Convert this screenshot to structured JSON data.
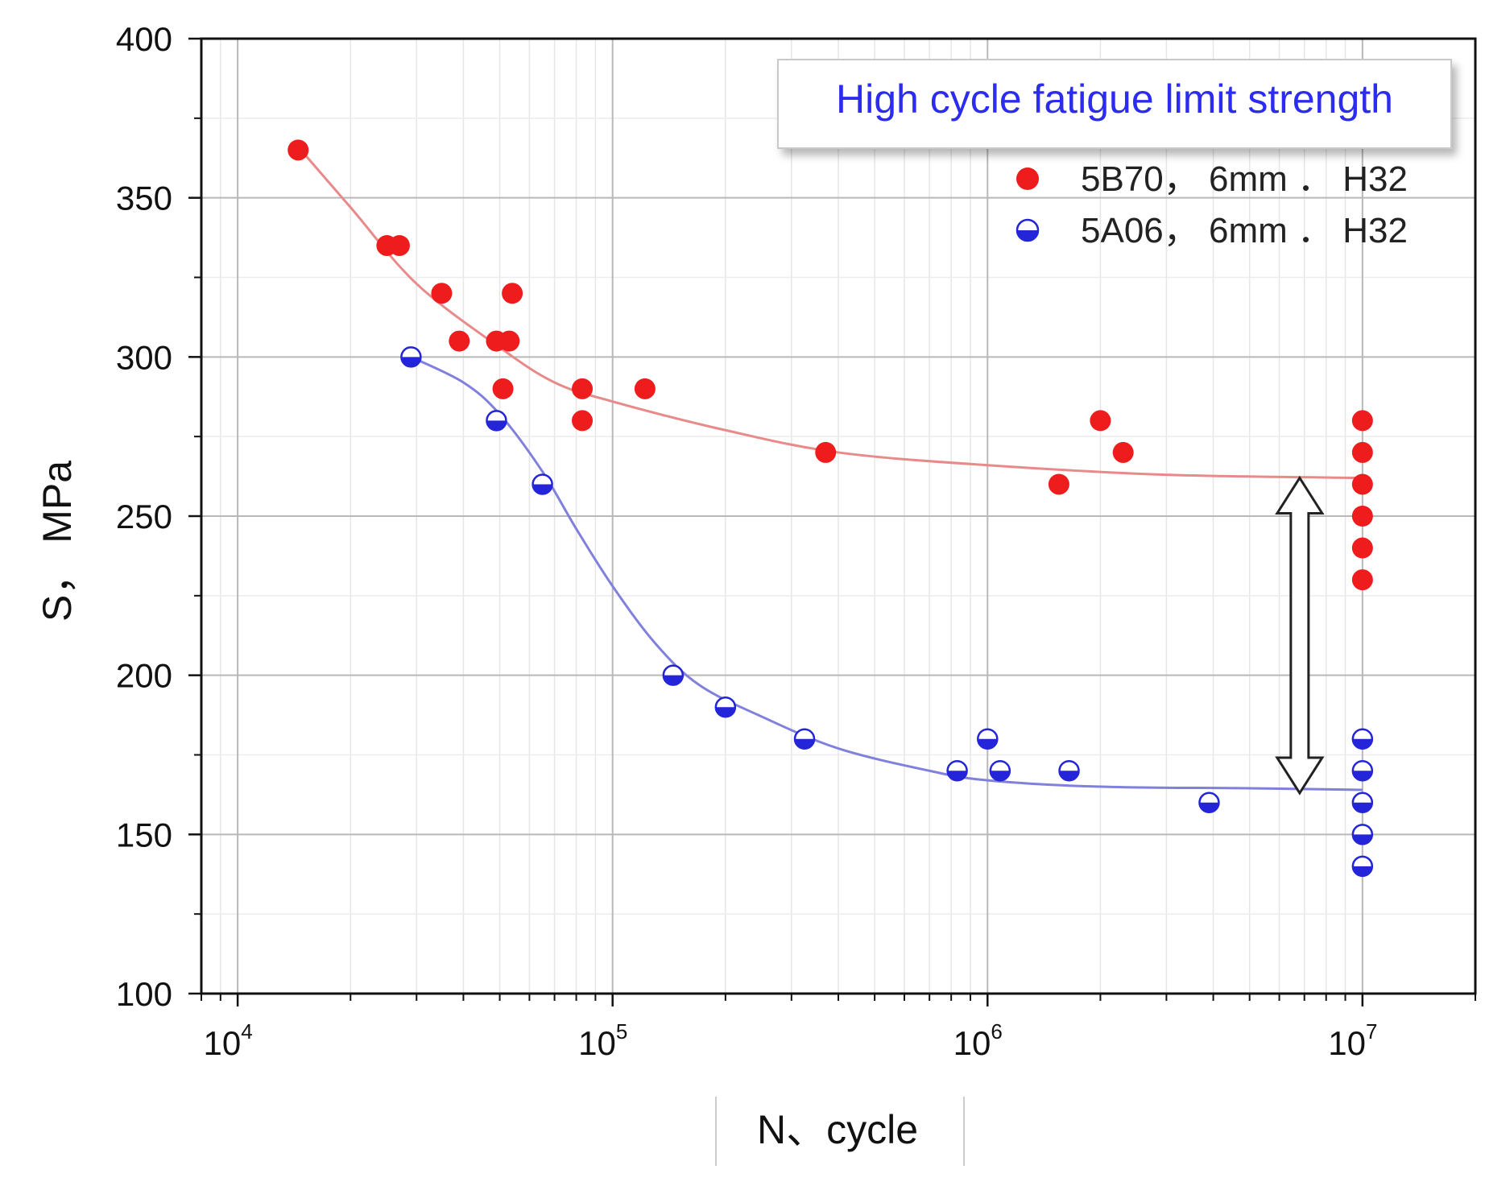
{
  "chart_data": {
    "type": "scatter",
    "title": "",
    "annotation": "High cycle fatigue limit strength",
    "xlabel": "N、cycle",
    "ylabel": "S， MPa",
    "xscale": "log",
    "xlim": [
      8000,
      20000000
    ],
    "ylim": [
      100,
      400
    ],
    "xticks": [
      {
        "value": 10000,
        "base": "10",
        "exp": "4"
      },
      {
        "value": 100000,
        "base": "10",
        "exp": "5"
      },
      {
        "value": 1000000,
        "base": "10",
        "exp": "6"
      },
      {
        "value": 10000000,
        "base": "10",
        "exp": "7"
      }
    ],
    "yticks": [
      100,
      150,
      200,
      250,
      300,
      350,
      400
    ],
    "grid": true,
    "legend_position": "top-right",
    "arrow": {
      "x": 6800000,
      "y_from": 163,
      "y_to": 262,
      "style": "double-headed"
    },
    "series": [
      {
        "name": "5B70， 6mm  ． H32",
        "color": "#ee1c1c",
        "marker": "filled-circle",
        "points": [
          [
            14500,
            365
          ],
          [
            25000,
            335
          ],
          [
            27000,
            335
          ],
          [
            35000,
            320
          ],
          [
            39000,
            305
          ],
          [
            49000,
            305
          ],
          [
            53000,
            305
          ],
          [
            51000,
            290
          ],
          [
            54000,
            320
          ],
          [
            83000,
            290
          ],
          [
            83000,
            280
          ],
          [
            122000,
            290
          ],
          [
            370000,
            270
          ],
          [
            1550000,
            260
          ],
          [
            2000000,
            280
          ],
          [
            2300000,
            270
          ],
          [
            10000000,
            280
          ],
          [
            10000000,
            270
          ],
          [
            10000000,
            260
          ],
          [
            10000000,
            250
          ],
          [
            10000000,
            240
          ],
          [
            10000000,
            230
          ]
        ],
        "fit": [
          [
            14500,
            366
          ],
          [
            20000,
            347
          ],
          [
            30000,
            323
          ],
          [
            50000,
            303
          ],
          [
            70000,
            292
          ],
          [
            100000,
            286
          ],
          [
            200000,
            277
          ],
          [
            400000,
            270
          ],
          [
            1000000,
            266
          ],
          [
            3000000,
            263
          ],
          [
            10000000,
            262
          ]
        ]
      },
      {
        "name": "5A06， 6mm  ． H32",
        "color": "#2424d8",
        "marker": "half-filled-circle",
        "points": [
          [
            29000,
            300
          ],
          [
            49000,
            280
          ],
          [
            65000,
            260
          ],
          [
            145000,
            200
          ],
          [
            200000,
            190
          ],
          [
            325000,
            180
          ],
          [
            830000,
            170
          ],
          [
            1000000,
            180
          ],
          [
            1080000,
            170
          ],
          [
            1650000,
            170
          ],
          [
            3900000,
            160
          ],
          [
            10000000,
            180
          ],
          [
            10000000,
            170
          ],
          [
            10000000,
            160
          ],
          [
            10000000,
            150
          ],
          [
            10000000,
            140
          ]
        ],
        "fit": [
          [
            29000,
            300
          ],
          [
            40000,
            292
          ],
          [
            50000,
            282
          ],
          [
            65000,
            264
          ],
          [
            80000,
            246
          ],
          [
            100000,
            228
          ],
          [
            130000,
            210
          ],
          [
            170000,
            197
          ],
          [
            250000,
            187
          ],
          [
            400000,
            177
          ],
          [
            700000,
            170
          ],
          [
            1000000,
            167
          ],
          [
            2000000,
            165
          ],
          [
            5000000,
            164.5
          ],
          [
            10000000,
            164
          ]
        ]
      }
    ]
  }
}
